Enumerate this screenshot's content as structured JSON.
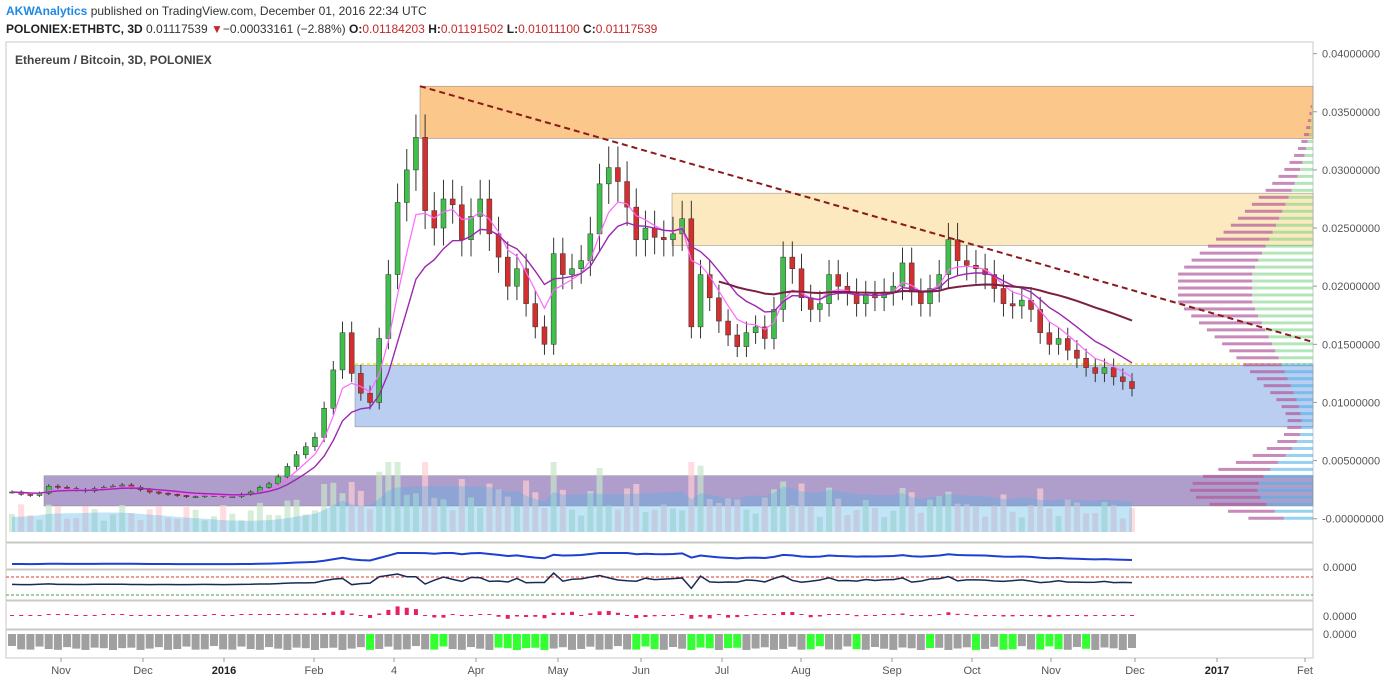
{
  "header": {
    "author": "AKWAnalytics",
    "published_text": "published on TradingView.com, December 01, 2016 22:34 UTC",
    "symbol": "POLONIEX:ETHBTC, 3D",
    "last": "0.01117539",
    "change_arrow": "▼",
    "change": "−0.00033161 (−2.88%)",
    "o_label": "O:",
    "o_value": "0.01184203",
    "h_label": "H:",
    "h_value": "0.01191502",
    "l_label": "L:",
    "l_value": "0.01011100",
    "c_label": "C:",
    "c_value": "0.01117539"
  },
  "chart_title": "Ethereum / Bitcoin, 3D, POLONIEX",
  "colors": {
    "up": "#3fc04a",
    "down": "#d32f2f",
    "ema_fast": "#ff66ff",
    "ema_slow": "#9c27b0",
    "sma_long": "#7b1f45",
    "trendline": "#8b1a1a",
    "zone_orange": "#f9a23c",
    "zone_light_orange": "#fde3b0",
    "zone_blue": "#8aaee8",
    "zone_purple": "#7a5ca8",
    "volume": "#4fb3e8",
    "support_line": "#f5e63a"
  },
  "chart_data": {
    "type": "candlestick",
    "y_axis": {
      "min": -0.002,
      "max": 0.041,
      "ticks": [
        "0.04000000",
        "0.03500000",
        "0.03000000",
        "0.02500000",
        "0.02000000",
        "0.01500000",
        "0.01000000",
        "0.00500000",
        "-0.00000000"
      ]
    },
    "x_axis": {
      "ticks": [
        {
          "label": "Nov",
          "bold": false
        },
        {
          "label": "Dec",
          "bold": false
        },
        {
          "label": "2016",
          "bold": true
        },
        {
          "label": "Feb",
          "bold": false
        },
        {
          "label": "4",
          "bold": false
        },
        {
          "label": "Apr",
          "bold": false
        },
        {
          "label": "May",
          "bold": false
        },
        {
          "label": "Jun",
          "bold": false
        },
        {
          "label": "Jul",
          "bold": false
        },
        {
          "label": "Aug",
          "bold": false
        },
        {
          "label": "Sep",
          "bold": false
        },
        {
          "label": "Oct",
          "bold": false
        },
        {
          "label": "Nov",
          "bold": false
        },
        {
          "label": "Dec",
          "bold": false
        },
        {
          "label": "2017",
          "bold": true
        },
        {
          "label": "Fet",
          "bold": false
        }
      ]
    },
    "zones": [
      {
        "name": "resistance-high",
        "from": 0.0327,
        "to": 0.0372,
        "color": "#f9a23c"
      },
      {
        "name": "resistance-mid",
        "from": 0.0235,
        "to": 0.028,
        "color": "#fde3b0"
      },
      {
        "name": "support-blue",
        "from": 0.0079,
        "to": 0.0132,
        "color": "#8aaee8"
      },
      {
        "name": "accumulation-purple",
        "from": 0.0011,
        "to": 0.0037,
        "color": "#7a5ca8"
      }
    ],
    "support_level": 0.0133,
    "trendline": {
      "from": 0.0372,
      "to": 0.0152
    },
    "candles_close": [
      0.0023,
      0.0021,
      0.002,
      0.0022,
      0.0028,
      0.0027,
      0.0026,
      0.0025,
      0.0024,
      0.0026,
      0.0027,
      0.0028,
      0.0029,
      0.0027,
      0.0025,
      0.0023,
      0.0022,
      0.0021,
      0.002,
      0.0019,
      0.0019,
      0.002,
      0.002,
      0.0019,
      0.0019,
      0.0021,
      0.0023,
      0.0027,
      0.003,
      0.0036,
      0.0045,
      0.0055,
      0.0062,
      0.007,
      0.0095,
      0.0128,
      0.016,
      0.0125,
      0.0108,
      0.01,
      0.0155,
      0.021,
      0.0272,
      0.03,
      0.0328,
      0.0265,
      0.025,
      0.0275,
      0.027,
      0.024,
      0.026,
      0.0275,
      0.0245,
      0.0225,
      0.02,
      0.0215,
      0.0185,
      0.0165,
      0.015,
      0.0228,
      0.021,
      0.0215,
      0.0222,
      0.0245,
      0.0288,
      0.0302,
      0.029,
      0.0268,
      0.024,
      0.025,
      0.0242,
      0.024,
      0.0245,
      0.0258,
      0.0165,
      0.021,
      0.019,
      0.017,
      0.0158,
      0.0148,
      0.016,
      0.0165,
      0.0155,
      0.018,
      0.0225,
      0.0215,
      0.019,
      0.018,
      0.0185,
      0.021,
      0.02,
      0.0195,
      0.0185,
      0.0193,
      0.019,
      0.0195,
      0.02,
      0.022,
      0.0195,
      0.0185,
      0.0198,
      0.021,
      0.024,
      0.0222,
      0.0218,
      0.0215,
      0.021,
      0.0198,
      0.0185,
      0.0183,
      0.0188,
      0.018,
      0.016,
      0.015,
      0.0155,
      0.0145,
      0.0138,
      0.013,
      0.0125,
      0.013,
      0.0122,
      0.0118,
      0.0112
    ]
  },
  "indicators": {
    "macd_value": "0.0000",
    "rsi_value": "0.0000",
    "hist_value": "0.0000",
    "last_value": "0.0000"
  }
}
